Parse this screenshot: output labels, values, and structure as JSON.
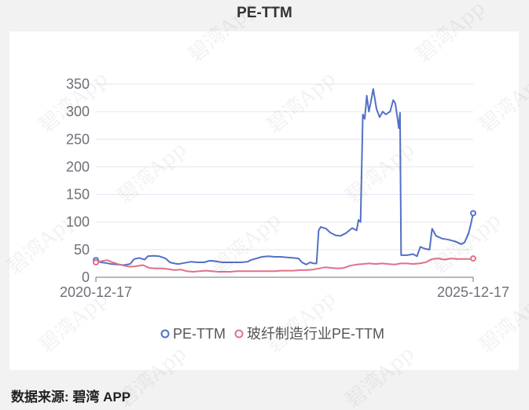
{
  "chart_data": {
    "type": "line",
    "title": "PE-TTM",
    "xlabel": "",
    "ylabel": "",
    "x_tick_labels": [
      "2020-12-17",
      "2025-12-17"
    ],
    "x_range": [
      "2020-12-17",
      "2025-12-17"
    ],
    "ylim": [
      0,
      350
    ],
    "y_ticks": [
      0,
      50,
      100,
      150,
      200,
      250,
      300,
      350
    ],
    "grid": true,
    "legend_position": "bottom-center",
    "series": [
      {
        "name": "PE-TTM",
        "color": "#5470c6",
        "points": [
          [
            "2020-12-17",
            31
          ],
          [
            "2021-01-08",
            27
          ],
          [
            "2021-02-01",
            26
          ],
          [
            "2021-03-01",
            24
          ],
          [
            "2021-04-01",
            23
          ],
          [
            "2021-05-01",
            22
          ],
          [
            "2021-06-01",
            24
          ],
          [
            "2021-06-20",
            33
          ],
          [
            "2021-07-15",
            35
          ],
          [
            "2021-08-10",
            32
          ],
          [
            "2021-08-25",
            38
          ],
          [
            "2021-09-20",
            39
          ],
          [
            "2021-10-20",
            38
          ],
          [
            "2021-11-20",
            34
          ],
          [
            "2021-12-10",
            27
          ],
          [
            "2022-01-01",
            25
          ],
          [
            "2022-01-20",
            24
          ],
          [
            "2022-02-20",
            26
          ],
          [
            "2022-03-20",
            28
          ],
          [
            "2022-04-25",
            27
          ],
          [
            "2022-05-25",
            27
          ],
          [
            "2022-06-20",
            30
          ],
          [
            "2022-07-20",
            29
          ],
          [
            "2022-08-20",
            27
          ],
          [
            "2022-09-20",
            27
          ],
          [
            "2022-10-20",
            27
          ],
          [
            "2022-11-20",
            27
          ],
          [
            "2022-12-20",
            28
          ],
          [
            "2023-01-05",
            31
          ],
          [
            "2023-02-01",
            34
          ],
          [
            "2023-03-01",
            37
          ],
          [
            "2023-04-01",
            38
          ],
          [
            "2023-05-01",
            37
          ],
          [
            "2023-06-01",
            37
          ],
          [
            "2023-07-01",
            36
          ],
          [
            "2023-08-01",
            35
          ],
          [
            "2023-08-25",
            34
          ],
          [
            "2023-09-10",
            27
          ],
          [
            "2023-10-01",
            23
          ],
          [
            "2023-10-20",
            27
          ],
          [
            "2023-11-05",
            25
          ],
          [
            "2023-11-20",
            25
          ],
          [
            "2023-11-30",
            85
          ],
          [
            "2023-12-10",
            91
          ],
          [
            "2024-01-05",
            88
          ],
          [
            "2024-01-25",
            81
          ],
          [
            "2024-02-20",
            76
          ],
          [
            "2024-03-15",
            75
          ],
          [
            "2024-04-10",
            80
          ],
          [
            "2024-05-10",
            89
          ],
          [
            "2024-06-01",
            85
          ],
          [
            "2024-06-10",
            104
          ],
          [
            "2024-06-20",
            100
          ],
          [
            "2024-07-01",
            295
          ],
          [
            "2024-07-10",
            287
          ],
          [
            "2024-07-20",
            329
          ],
          [
            "2024-07-30",
            300
          ],
          [
            "2024-08-10",
            320
          ],
          [
            "2024-08-20",
            341
          ],
          [
            "2024-09-05",
            305
          ],
          [
            "2024-09-20",
            290
          ],
          [
            "2024-10-05",
            300
          ],
          [
            "2024-10-20",
            295
          ],
          [
            "2024-11-10",
            300
          ],
          [
            "2024-11-25",
            321
          ],
          [
            "2024-12-05",
            315
          ],
          [
            "2024-12-15",
            290
          ],
          [
            "2024-12-22",
            270
          ],
          [
            "2024-12-28",
            298
          ],
          [
            "2025-01-02",
            40
          ],
          [
            "2025-02-01",
            40
          ],
          [
            "2025-03-01",
            42
          ],
          [
            "2025-03-20",
            38
          ],
          [
            "2025-04-05",
            55
          ],
          [
            "2025-04-25",
            52
          ],
          [
            "2025-05-20",
            50
          ],
          [
            "2025-06-01",
            88
          ],
          [
            "2025-06-20",
            75
          ],
          [
            "2025-07-20",
            70
          ],
          [
            "2025-08-20",
            68
          ],
          [
            "2025-09-20",
            65
          ],
          [
            "2025-10-20",
            60
          ],
          [
            "2025-11-05",
            63
          ],
          [
            "2025-11-25",
            80
          ],
          [
            "2025-12-05",
            95
          ],
          [
            "2025-12-17",
            116
          ]
        ]
      },
      {
        "name": "玻纤制造行业PE-TTM",
        "color": "#e0708a",
        "points": [
          [
            "2020-12-17",
            27
          ],
          [
            "2021-01-10",
            29
          ],
          [
            "2021-02-10",
            31
          ],
          [
            "2021-03-01",
            28
          ],
          [
            "2021-04-01",
            24
          ],
          [
            "2021-05-01",
            21
          ],
          [
            "2021-06-01",
            19
          ],
          [
            "2021-07-01",
            20
          ],
          [
            "2021-08-01",
            22
          ],
          [
            "2021-09-01",
            17
          ],
          [
            "2021-10-01",
            16
          ],
          [
            "2021-11-01",
            16
          ],
          [
            "2021-12-01",
            15
          ],
          [
            "2022-01-01",
            13
          ],
          [
            "2022-02-01",
            14
          ],
          [
            "2022-03-01",
            11
          ],
          [
            "2022-04-01",
            10
          ],
          [
            "2022-05-01",
            11
          ],
          [
            "2022-06-01",
            12
          ],
          [
            "2022-07-01",
            11
          ],
          [
            "2022-08-01",
            10
          ],
          [
            "2022-09-01",
            10
          ],
          [
            "2022-10-01",
            10
          ],
          [
            "2022-11-01",
            11
          ],
          [
            "2022-12-01",
            11
          ],
          [
            "2023-01-01",
            11
          ],
          [
            "2023-02-01",
            11
          ],
          [
            "2023-03-01",
            11
          ],
          [
            "2023-04-01",
            11
          ],
          [
            "2023-05-01",
            11
          ],
          [
            "2023-06-01",
            12
          ],
          [
            "2023-07-01",
            12
          ],
          [
            "2023-08-01",
            12
          ],
          [
            "2023-09-01",
            13
          ],
          [
            "2023-10-01",
            13
          ],
          [
            "2023-11-01",
            14
          ],
          [
            "2023-12-01",
            16
          ],
          [
            "2024-01-01",
            18
          ],
          [
            "2024-02-01",
            17
          ],
          [
            "2024-03-01",
            16
          ],
          [
            "2024-04-01",
            17
          ],
          [
            "2024-05-01",
            21
          ],
          [
            "2024-06-01",
            23
          ],
          [
            "2024-07-01",
            24
          ],
          [
            "2024-08-01",
            25
          ],
          [
            "2024-09-01",
            24
          ],
          [
            "2024-10-01",
            25
          ],
          [
            "2024-11-01",
            24
          ],
          [
            "2024-12-01",
            23
          ],
          [
            "2025-01-01",
            25
          ],
          [
            "2025-02-01",
            25
          ],
          [
            "2025-03-01",
            24
          ],
          [
            "2025-04-01",
            25
          ],
          [
            "2025-05-01",
            27
          ],
          [
            "2025-06-01",
            33
          ],
          [
            "2025-07-01",
            34
          ],
          [
            "2025-08-01",
            32
          ],
          [
            "2025-09-01",
            34
          ],
          [
            "2025-10-01",
            33
          ],
          [
            "2025-11-01",
            33
          ],
          [
            "2025-12-01",
            33
          ],
          [
            "2025-12-17",
            34
          ]
        ]
      }
    ]
  },
  "source_text": "数据来源: 碧湾 APP",
  "watermark_text": "碧湾App"
}
